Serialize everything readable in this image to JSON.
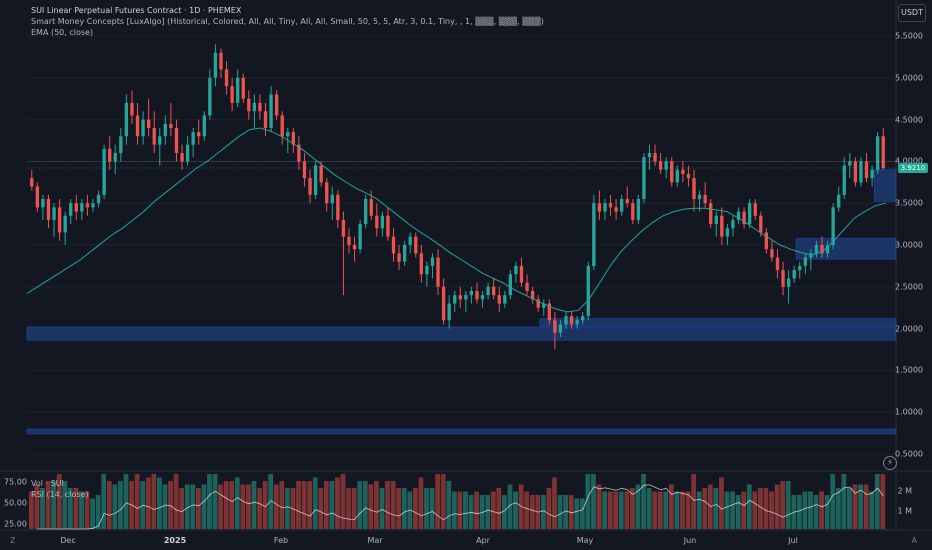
{
  "header": {
    "title": "SUI Linear Perpetual Futures Contract · 1D · PHEMEX",
    "indicator": "Smart Money Concepts [LuxAlgo] (Historical, Colored, All, All, Tiny, All, All, Small, 50, 5, 5, Atr, 3, 0.1, Tiny, , 1, ▒▒▒, ▒▒▒, ▒▒▒)",
    "ema": "EMA (50, close)"
  },
  "currency": "USDT",
  "price_axis": [
    "5.5000",
    "5.0000",
    "4.5000",
    "4.0000",
    "3.5000",
    "3.0000",
    "2.5000",
    "2.0000",
    "1.5000",
    "1.0000",
    "0.5000"
  ],
  "current_price": "3.9210",
  "time_axis": [
    {
      "label": "Dec",
      "bold": false
    },
    {
      "label": "2025",
      "bold": true
    },
    {
      "label": "Feb",
      "bold": false
    },
    {
      "label": "Mar",
      "bold": false
    },
    {
      "label": "Apr",
      "bold": false
    },
    {
      "label": "May",
      "bold": false
    },
    {
      "label": "Jun",
      "bold": false
    },
    {
      "label": "Jul",
      "bold": false
    }
  ],
  "corner_left": "Z",
  "corner_right": "A",
  "lower_pane": {
    "vol_label": "Vol · SUI",
    "rsi_label": "RSI (14, close)",
    "rsi_axis": [
      "75.00",
      "50.00",
      "25.00"
    ],
    "vol_axis": [
      "2 M",
      "1 M"
    ]
  },
  "lightning_icon": "lightning-icon",
  "colors": {
    "up": "#26a69a",
    "down": "#ef5350",
    "ema": "#26a69a",
    "zone": "#2a4a8b",
    "rsi": "#ffffff"
  },
  "chart_data": {
    "type": "candlestick",
    "price_range": [
      0.45,
      5.6
    ],
    "candles": [
      [
        3.8,
        3.9,
        3.65,
        3.7
      ],
      [
        3.7,
        3.75,
        3.4,
        3.45
      ],
      [
        3.45,
        3.6,
        3.3,
        3.55
      ],
      [
        3.55,
        3.6,
        3.2,
        3.3
      ],
      [
        3.3,
        3.5,
        3.1,
        3.45
      ],
      [
        3.45,
        3.55,
        3.05,
        3.15
      ],
      [
        3.15,
        3.4,
        3.0,
        3.35
      ],
      [
        3.35,
        3.55,
        3.25,
        3.5
      ],
      [
        3.5,
        3.6,
        3.3,
        3.4
      ],
      [
        3.4,
        3.55,
        3.3,
        3.5
      ],
      [
        3.5,
        3.6,
        3.35,
        3.45
      ],
      [
        3.45,
        3.55,
        3.4,
        3.5
      ],
      [
        3.5,
        3.65,
        3.45,
        3.6
      ],
      [
        3.6,
        4.2,
        3.55,
        4.15
      ],
      [
        4.15,
        4.3,
        3.9,
        4.0
      ],
      [
        4.0,
        4.2,
        3.85,
        4.1
      ],
      [
        4.1,
        4.4,
        4.0,
        4.3
      ],
      [
        4.3,
        4.8,
        4.2,
        4.7
      ],
      [
        4.7,
        4.85,
        4.45,
        4.55
      ],
      [
        4.55,
        4.7,
        4.2,
        4.3
      ],
      [
        4.3,
        4.6,
        4.2,
        4.5
      ],
      [
        4.5,
        4.75,
        4.3,
        4.4
      ],
      [
        4.4,
        4.6,
        4.1,
        4.2
      ],
      [
        4.2,
        4.4,
        3.95,
        4.3
      ],
      [
        4.3,
        4.55,
        4.2,
        4.45
      ],
      [
        4.45,
        4.7,
        4.3,
        4.4
      ],
      [
        4.4,
        4.5,
        4.0,
        4.1
      ],
      [
        4.1,
        4.2,
        3.9,
        4.0
      ],
      [
        4.0,
        4.3,
        3.95,
        4.2
      ],
      [
        4.2,
        4.4,
        4.05,
        4.35
      ],
      [
        4.35,
        4.5,
        4.2,
        4.3
      ],
      [
        4.3,
        4.6,
        4.25,
        4.55
      ],
      [
        4.55,
        5.1,
        4.5,
        5.0
      ],
      [
        5.0,
        5.4,
        4.9,
        5.3
      ],
      [
        5.3,
        5.35,
        5.0,
        5.1
      ],
      [
        5.1,
        5.2,
        4.8,
        4.9
      ],
      [
        4.9,
        5.0,
        4.6,
        4.7
      ],
      [
        4.7,
        5.1,
        4.65,
        5.0
      ],
      [
        5.0,
        5.05,
        4.7,
        4.75
      ],
      [
        4.75,
        4.85,
        4.5,
        4.6
      ],
      [
        4.6,
        4.8,
        4.4,
        4.7
      ],
      [
        4.7,
        4.8,
        4.5,
        4.6
      ],
      [
        4.6,
        4.7,
        4.3,
        4.4
      ],
      [
        4.4,
        4.9,
        4.35,
        4.8
      ],
      [
        4.8,
        4.85,
        4.5,
        4.55
      ],
      [
        4.55,
        4.6,
        4.2,
        4.3
      ],
      [
        4.3,
        4.4,
        4.1,
        4.35
      ],
      [
        4.35,
        4.4,
        4.1,
        4.2
      ],
      [
        4.2,
        4.3,
        3.9,
        4.0
      ],
      [
        4.0,
        4.1,
        3.7,
        3.8
      ],
      [
        3.8,
        3.9,
        3.5,
        3.6
      ],
      [
        3.6,
        4.0,
        3.55,
        3.95
      ],
      [
        3.95,
        4.0,
        3.7,
        3.75
      ],
      [
        3.75,
        3.8,
        3.4,
        3.5
      ],
      [
        3.5,
        3.7,
        3.3,
        3.6
      ],
      [
        3.6,
        3.65,
        3.2,
        3.3
      ],
      [
        3.3,
        3.4,
        2.4,
        3.1
      ],
      [
        3.1,
        3.2,
        2.9,
        3.0
      ],
      [
        3.0,
        3.1,
        2.8,
        2.95
      ],
      [
        2.95,
        3.3,
        2.9,
        3.25
      ],
      [
        3.25,
        3.6,
        3.2,
        3.55
      ],
      [
        3.55,
        3.65,
        3.3,
        3.35
      ],
      [
        3.35,
        3.5,
        3.1,
        3.2
      ],
      [
        3.2,
        3.4,
        3.1,
        3.35
      ],
      [
        3.35,
        3.45,
        3.05,
        3.1
      ],
      [
        3.1,
        3.2,
        2.8,
        2.9
      ],
      [
        2.9,
        3.0,
        2.7,
        2.8
      ],
      [
        2.8,
        3.05,
        2.75,
        3.0
      ],
      [
        3.0,
        3.15,
        2.9,
        3.1
      ],
      [
        3.1,
        3.15,
        2.85,
        2.9
      ],
      [
        2.9,
        3.0,
        2.55,
        2.65
      ],
      [
        2.65,
        2.8,
        2.5,
        2.75
      ],
      [
        2.75,
        2.9,
        2.6,
        2.85
      ],
      [
        2.85,
        2.95,
        2.4,
        2.5
      ],
      [
        2.5,
        2.6,
        2.05,
        2.1
      ],
      [
        2.1,
        2.4,
        2.0,
        2.3
      ],
      [
        2.3,
        2.45,
        2.2,
        2.4
      ],
      [
        2.4,
        2.5,
        2.25,
        2.35
      ],
      [
        2.35,
        2.45,
        2.2,
        2.4
      ],
      [
        2.4,
        2.5,
        2.3,
        2.45
      ],
      [
        2.45,
        2.55,
        2.3,
        2.35
      ],
      [
        2.35,
        2.45,
        2.25,
        2.4
      ],
      [
        2.4,
        2.55,
        2.35,
        2.5
      ],
      [
        2.5,
        2.6,
        2.35,
        2.4
      ],
      [
        2.4,
        2.5,
        2.2,
        2.3
      ],
      [
        2.3,
        2.45,
        2.25,
        2.4
      ],
      [
        2.4,
        2.7,
        2.35,
        2.65
      ],
      [
        2.65,
        2.8,
        2.55,
        2.75
      ],
      [
        2.75,
        2.85,
        2.5,
        2.55
      ],
      [
        2.55,
        2.65,
        2.4,
        2.45
      ],
      [
        2.45,
        2.5,
        2.3,
        2.35
      ],
      [
        2.35,
        2.4,
        2.2,
        2.25
      ],
      [
        2.25,
        2.35,
        2.15,
        2.3
      ],
      [
        2.3,
        2.35,
        2.05,
        2.1
      ],
      [
        2.1,
        2.2,
        1.75,
        1.95
      ],
      [
        1.95,
        2.1,
        1.9,
        2.05
      ],
      [
        2.05,
        2.2,
        2.0,
        2.15
      ],
      [
        2.15,
        2.2,
        2.0,
        2.05
      ],
      [
        2.05,
        2.15,
        2.0,
        2.1
      ],
      [
        2.1,
        2.2,
        2.05,
        2.15
      ],
      [
        2.15,
        2.8,
        2.1,
        2.75
      ],
      [
        2.75,
        3.6,
        2.7,
        3.5
      ],
      [
        3.5,
        3.65,
        3.3,
        3.4
      ],
      [
        3.4,
        3.55,
        3.3,
        3.5
      ],
      [
        3.5,
        3.6,
        3.35,
        3.45
      ],
      [
        3.45,
        3.55,
        3.3,
        3.4
      ],
      [
        3.4,
        3.6,
        3.35,
        3.55
      ],
      [
        3.55,
        3.7,
        3.45,
        3.5
      ],
      [
        3.5,
        3.55,
        3.25,
        3.3
      ],
      [
        3.3,
        3.6,
        3.25,
        3.55
      ],
      [
        3.55,
        4.1,
        3.5,
        4.05
      ],
      [
        4.05,
        4.2,
        3.9,
        4.1
      ],
      [
        4.1,
        4.2,
        3.95,
        4.0
      ],
      [
        4.0,
        4.1,
        3.85,
        3.9
      ],
      [
        3.9,
        4.05,
        3.8,
        4.0
      ],
      [
        4.0,
        4.05,
        3.7,
        3.75
      ],
      [
        3.75,
        3.95,
        3.7,
        3.9
      ],
      [
        3.9,
        4.0,
        3.75,
        3.85
      ],
      [
        3.85,
        3.95,
        3.7,
        3.8
      ],
      [
        3.8,
        3.9,
        3.4,
        3.55
      ],
      [
        3.55,
        3.65,
        3.4,
        3.6
      ],
      [
        3.6,
        3.75,
        3.45,
        3.5
      ],
      [
        3.5,
        3.55,
        3.2,
        3.25
      ],
      [
        3.25,
        3.4,
        3.1,
        3.35
      ],
      [
        3.35,
        3.45,
        3.0,
        3.1
      ],
      [
        3.1,
        3.25,
        3.0,
        3.2
      ],
      [
        3.2,
        3.35,
        3.1,
        3.3
      ],
      [
        3.3,
        3.45,
        3.25,
        3.4
      ],
      [
        3.4,
        3.45,
        3.2,
        3.25
      ],
      [
        3.25,
        3.55,
        3.2,
        3.5
      ],
      [
        3.5,
        3.55,
        3.3,
        3.35
      ],
      [
        3.35,
        3.4,
        3.1,
        3.15
      ],
      [
        3.15,
        3.2,
        2.9,
        2.95
      ],
      [
        2.95,
        3.05,
        2.8,
        2.85
      ],
      [
        2.85,
        2.95,
        2.6,
        2.7
      ],
      [
        2.7,
        2.8,
        2.4,
        2.5
      ],
      [
        2.5,
        2.7,
        2.3,
        2.6
      ],
      [
        2.6,
        2.75,
        2.55,
        2.7
      ],
      [
        2.7,
        2.8,
        2.6,
        2.75
      ],
      [
        2.75,
        2.9,
        2.65,
        2.85
      ],
      [
        2.85,
        2.95,
        2.7,
        2.9
      ],
      [
        2.9,
        3.05,
        2.85,
        3.0
      ],
      [
        3.0,
        3.1,
        2.85,
        2.9
      ],
      [
        2.9,
        3.05,
        2.85,
        3.0
      ],
      [
        3.0,
        3.5,
        2.95,
        3.45
      ],
      [
        3.45,
        3.7,
        3.4,
        3.6
      ],
      [
        3.6,
        4.05,
        3.55,
        3.95
      ],
      [
        3.95,
        4.1,
        3.8,
        4.0
      ],
      [
        4.0,
        4.05,
        3.7,
        3.75
      ],
      [
        3.75,
        4.05,
        3.7,
        4.0
      ],
      [
        4.0,
        4.1,
        3.75,
        3.8
      ],
      [
        3.8,
        3.95,
        3.7,
        3.9
      ],
      [
        3.9,
        4.35,
        3.85,
        4.3
      ],
      [
        4.3,
        4.4,
        3.9,
        3.92
      ]
    ],
    "ema_50": [
      2.42,
      2.5,
      2.58,
      2.66,
      2.74,
      2.82,
      2.92,
      3.02,
      3.12,
      3.2,
      3.3,
      3.4,
      3.52,
      3.62,
      3.72,
      3.82,
      3.92,
      4.0,
      4.1,
      4.2,
      4.3,
      4.38,
      4.4,
      4.36,
      4.3,
      4.22,
      4.14,
      4.04,
      3.94,
      3.84,
      3.76,
      3.68,
      3.62,
      3.55,
      3.45,
      3.35,
      3.25,
      3.16,
      3.08,
      2.99,
      2.9,
      2.82,
      2.74,
      2.66,
      2.6,
      2.54,
      2.46,
      2.4,
      2.34,
      2.28,
      2.23,
      2.2,
      2.22,
      2.35,
      2.55,
      2.75,
      2.92,
      3.05,
      3.17,
      3.27,
      3.35,
      3.4,
      3.43,
      3.44,
      3.44,
      3.42,
      3.4,
      3.33,
      3.25,
      3.16,
      3.08,
      3.0,
      2.95,
      2.91,
      2.88,
      2.92,
      3.04,
      3.18,
      3.32,
      3.4,
      3.47,
      3.5
    ],
    "zones": [
      {
        "from": 0.0,
        "to": 1.0,
        "low": 1.86,
        "high": 2.02
      },
      {
        "from": 0.59,
        "to": 1.0,
        "low": 2.03,
        "high": 2.12
      },
      {
        "from": 0.0,
        "to": 1.0,
        "low": 0.74,
        "high": 0.8
      },
      {
        "from": 0.885,
        "to": 1.0,
        "low": 2.83,
        "high": 3.08
      },
      {
        "from": 0.975,
        "to": 1.0,
        "low": 3.52,
        "high": 3.9
      }
    ]
  }
}
